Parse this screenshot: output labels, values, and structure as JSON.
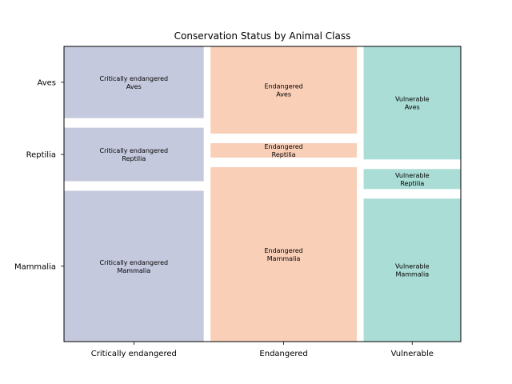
{
  "chart_data": {
    "type": "mosaic",
    "title": "Conservation Status by Animal Class",
    "xlabel": "",
    "ylabel": "",
    "grid": false,
    "legend": "none",
    "categories": [
      "Critically endangered",
      "Endangered",
      "Vulnerable"
    ],
    "row_categories": [
      "Aves",
      "Reptilia",
      "Mammalia"
    ],
    "column_shares": [
      0.361,
      0.378,
      0.251
    ],
    "row_shares_within_column": [
      {
        "category": "Critically endangered",
        "Aves": 0.244,
        "Reptilia": 0.182,
        "Mammalia": 0.513
      },
      {
        "category": "Endangered",
        "Aves": 0.297,
        "Reptilia": 0.049,
        "Mammalia": 0.594
      },
      {
        "category": "Vulnerable",
        "Aves": 0.385,
        "Reptilia": 0.068,
        "Mammalia": 0.487
      }
    ],
    "cells": [
      {
        "column": "Critically endangered",
        "row": "Aves",
        "label": "Critically endangered\nAves"
      },
      {
        "column": "Critically endangered",
        "row": "Reptilia",
        "label": "Critically endangered\nReptilia"
      },
      {
        "column": "Critically endangered",
        "row": "Mammalia",
        "label": "Critically endangered\nMammalia"
      },
      {
        "column": "Endangered",
        "row": "Aves",
        "label": "Endangered\nAves"
      },
      {
        "column": "Endangered",
        "row": "Reptilia",
        "label": "Endangered\nReptilia"
      },
      {
        "column": "Endangered",
        "row": "Mammalia",
        "label": "Endangered\nMammalia"
      },
      {
        "column": "Vulnerable",
        "row": "Aves",
        "label": "Vulnerable\nAves"
      },
      {
        "column": "Vulnerable",
        "row": "Reptilia",
        "label": "Vulnerable\nReptilia"
      },
      {
        "column": "Vulnerable",
        "row": "Mammalia",
        "label": "Vulnerable\nMammalia"
      }
    ],
    "yticks": [
      "Aves",
      "Reptilia",
      "Mammalia"
    ],
    "colors": {
      "Critically endangered": "#c5c9de",
      "Endangered": "#f9cfb8",
      "Vulnerable": "#aaddd5"
    }
  }
}
